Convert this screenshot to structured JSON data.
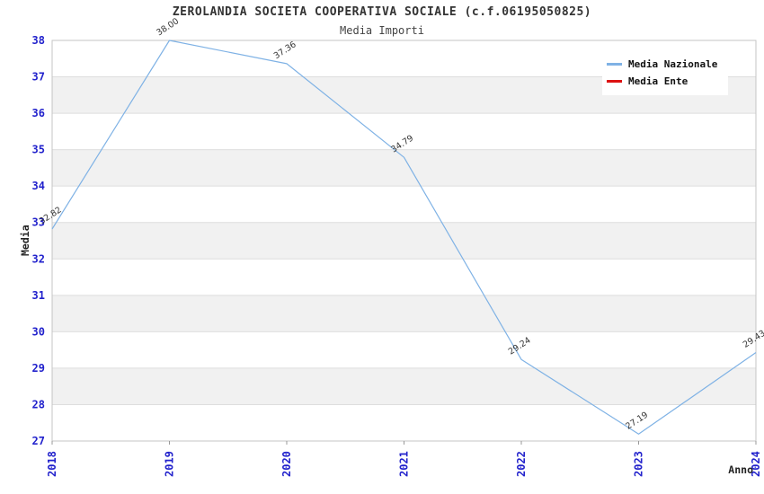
{
  "title": "ZEROLANDIA SOCIETA COOPERATIVA SOCIALE (c.f.06195050825)",
  "subtitle": "Media Importi",
  "ylabel": "Media",
  "xlabel": "Anno",
  "legend": [
    {
      "label": "Media Nazionale",
      "color": "#7fb2e5"
    },
    {
      "label": "Media Ente",
      "color": "#dd1111"
    }
  ],
  "colors": {
    "tick_label": "#2222cc",
    "line_blue": "#7fb2e5",
    "line_red": "#dd1111",
    "stripe_gray": "#f1f1f1",
    "grid_line": "#dedede",
    "plot_border": "#c4c4c4",
    "value_label": "#333333",
    "axis_label": "#222222"
  },
  "chart_data": {
    "type": "line",
    "title": "ZEROLANDIA SOCIETA COOPERATIVA SOCIALE (c.f.06195050825)",
    "subtitle": "Media Importi",
    "xlabel": "Anno",
    "ylabel": "Media",
    "x": [
      2018,
      2019,
      2020,
      2021,
      2022,
      2023,
      2024
    ],
    "series": [
      {
        "name": "Media Nazionale",
        "color": "#7fb2e5",
        "values": [
          32.82,
          38.0,
          37.36,
          34.79,
          29.24,
          27.19,
          29.43
        ]
      },
      {
        "name": "Media Ente",
        "color": "#dd1111",
        "values": []
      }
    ],
    "point_labels": [
      "32.82",
      "38.00",
      "37.36",
      "34.79",
      "29.24",
      "27.19",
      "29.43"
    ],
    "ylim": [
      27,
      38
    ],
    "yticks": [
      27,
      28,
      29,
      30,
      31,
      32,
      33,
      34,
      35,
      36,
      37,
      38
    ],
    "grid": "horizontal-stripes",
    "legend_position": "top-right"
  }
}
